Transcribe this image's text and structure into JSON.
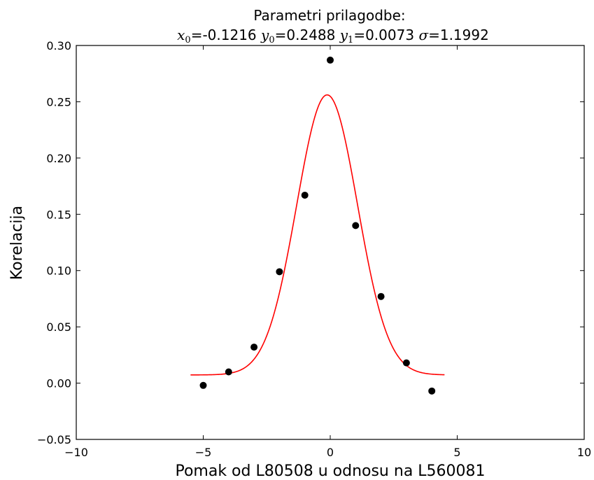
{
  "chart_data": {
    "type": "scatter",
    "title": "Parametri prilagodbe:",
    "subtitle": {
      "x0_value": "=-0.1216",
      "y0_value": "=0.2488",
      "y1_value": "=0.0073",
      "sigma_value": "=1.1992"
    },
    "xlabel": "Pomak od L80508 u odnosu na L560081",
    "ylabel": "Korelacija",
    "xlim": [
      -10,
      10
    ],
    "ylim": [
      -0.05,
      0.3
    ],
    "xticks": [
      -10,
      -5,
      0,
      5,
      10
    ],
    "xtick_labels": [
      "−10",
      "−5",
      "0",
      "5",
      "10"
    ],
    "yticks": [
      -0.05,
      0.0,
      0.05,
      0.1,
      0.15,
      0.2,
      0.25,
      0.3
    ],
    "ytick_labels": [
      "−0.05",
      "0.00",
      "0.05",
      "0.10",
      "0.15",
      "0.20",
      "0.25",
      "0.30"
    ],
    "grid": false,
    "series": [
      {
        "type": "scatter",
        "color": "#000000",
        "x": [
          -5,
          -4,
          -3,
          -2,
          -1,
          0,
          1,
          2,
          3,
          4
        ],
        "y": [
          -0.002,
          0.01,
          0.032,
          0.099,
          0.167,
          0.287,
          0.14,
          0.077,
          0.018,
          -0.007
        ]
      },
      {
        "type": "line",
        "color": "#ff0000",
        "function": "gaussian",
        "params": {
          "x0": -0.1216,
          "y0": 0.2488,
          "y1": 0.0073,
          "sigma": 1.1992
        },
        "x_range": [
          -5.5,
          4.5
        ]
      }
    ]
  }
}
